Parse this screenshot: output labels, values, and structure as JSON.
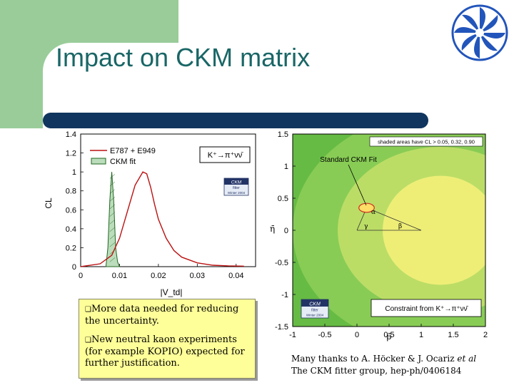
{
  "slide": {
    "title": "Impact on CKM matrix"
  },
  "left_plot": {
    "ylabel": "CL",
    "xlabel": "|V_td|",
    "yticks": [
      "0",
      "0.2",
      "0.4",
      "0.6",
      "0.8",
      "1",
      "1.2",
      "1.4"
    ],
    "xticks": [
      "0",
      "0.01",
      "0.02",
      "0.03",
      "0.04"
    ],
    "legend": [
      "E787 + E949",
      "CKM fit"
    ],
    "process": "K⁺→π⁺νν̄",
    "badge_title": "CKM",
    "badge_sub": "fitter",
    "badge_season": "Winter 2004"
  },
  "right_plot": {
    "ylabel": "η̄",
    "xlabel": "ρ̄",
    "yticks": [
      "1.5",
      "1",
      "0.5",
      "0",
      "-0.5",
      "-1",
      "-1.5"
    ],
    "xticks": [
      "-1",
      "-0.5",
      "0",
      "0.5",
      "1",
      "1.5",
      "2"
    ],
    "header": "shaded areas have CL > 0.05, 0.32, 0.90",
    "fit_label": "Standard CKM Fit",
    "alpha": "α",
    "beta": "β",
    "gamma": "γ",
    "constraint": "Constraint from K⁺→π⁺νν̄",
    "badge_title": "CKM",
    "badge_sub": "fitter",
    "badge_season": "Winter 2004"
  },
  "notes": {
    "bullet1": "More data needed for reducing the uncertainty.",
    "bullet2": "New neutral kaon experiments (for example KOPIO) expected for further justification."
  },
  "credits": {
    "line1_prefix": "Many thanks to A. Höcker & J. Ocariz ",
    "line1_etal": "et al",
    "line2": "The CKM fitter group, hep-ph/0406184"
  },
  "chart_data": [
    {
      "type": "line",
      "xlabel": "|V_td|",
      "ylabel": "CL",
      "xlim": [
        0,
        0.045
      ],
      "ylim": [
        0,
        1.4
      ],
      "series": [
        {
          "name": "E787 + E949",
          "x": [
            0.0,
            0.005,
            0.008,
            0.01,
            0.012,
            0.014,
            0.016,
            0.017,
            0.018,
            0.019,
            0.02,
            0.022,
            0.024,
            0.026,
            0.03,
            0.034,
            0.038,
            0.042
          ],
          "y": [
            0.0,
            0.03,
            0.12,
            0.3,
            0.58,
            0.86,
            1.0,
            0.98,
            0.84,
            0.66,
            0.5,
            0.3,
            0.17,
            0.1,
            0.04,
            0.015,
            0.008,
            0.005
          ]
        },
        {
          "name": "CKM fit",
          "x": [
            0.0065,
            0.007,
            0.0075,
            0.008,
            0.0085,
            0.009,
            0.0095,
            0.01
          ],
          "y": [
            0.0,
            0.2,
            0.7,
            1.0,
            0.7,
            0.2,
            0.05,
            0.0
          ]
        }
      ]
    },
    {
      "type": "scatter",
      "xlabel": "ρ̄",
      "ylabel": "η̄",
      "xlim": [
        -1,
        2
      ],
      "ylim": [
        -1.5,
        1.5
      ],
      "constraint_ellipse_cl": [
        {
          "cl": 0.05,
          "center": [
            1.3,
            0
          ],
          "rx": 2.3,
          "ry": 1.85
        },
        {
          "cl": 0.32,
          "center": [
            1.3,
            0
          ],
          "rx": 1.6,
          "ry": 1.3
        },
        {
          "cl": 0.9,
          "center": [
            1.3,
            0
          ],
          "rx": 0.9,
          "ry": 0.85
        }
      ],
      "apex": [
        0.15,
        0.35
      ]
    }
  ]
}
